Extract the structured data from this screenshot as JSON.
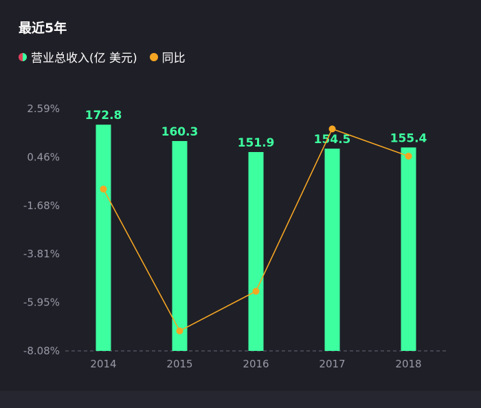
{
  "header": {
    "title": "最近5年"
  },
  "legend": [
    {
      "label": "营业总收入(亿 美元)",
      "icon": "split-circle-icon"
    },
    {
      "label": "同比",
      "icon": "orange-dot-icon"
    }
  ],
  "colors": {
    "background": "#1f1f27",
    "bar": "#3dffa0",
    "bar_label": "#3dffa0",
    "line": "#f5a623",
    "axis_text": "#9a9aa8",
    "baseline": "#6a6a78"
  },
  "chart_data": {
    "type": "bar",
    "categories": [
      "2014",
      "2015",
      "2016",
      "2017",
      "2018"
    ],
    "series": [
      {
        "name": "营业总收入(亿 美元)",
        "type": "bar",
        "values": [
          172.8,
          160.3,
          151.9,
          154.5,
          155.4
        ]
      },
      {
        "name": "同比",
        "type": "line",
        "values": [
          -0.95,
          -7.2,
          -5.45,
          1.7,
          0.5
        ]
      }
    ],
    "ytick_labels": [
      "2.59%",
      "0.46%",
      "-1.68%",
      "-3.81%",
      "-5.95%",
      "-8.08%"
    ],
    "yoy_range": [
      -8.08,
      2.59
    ],
    "revenue_range": [
      0,
      185
    ],
    "grid": false,
    "legend_position": "top-left"
  }
}
